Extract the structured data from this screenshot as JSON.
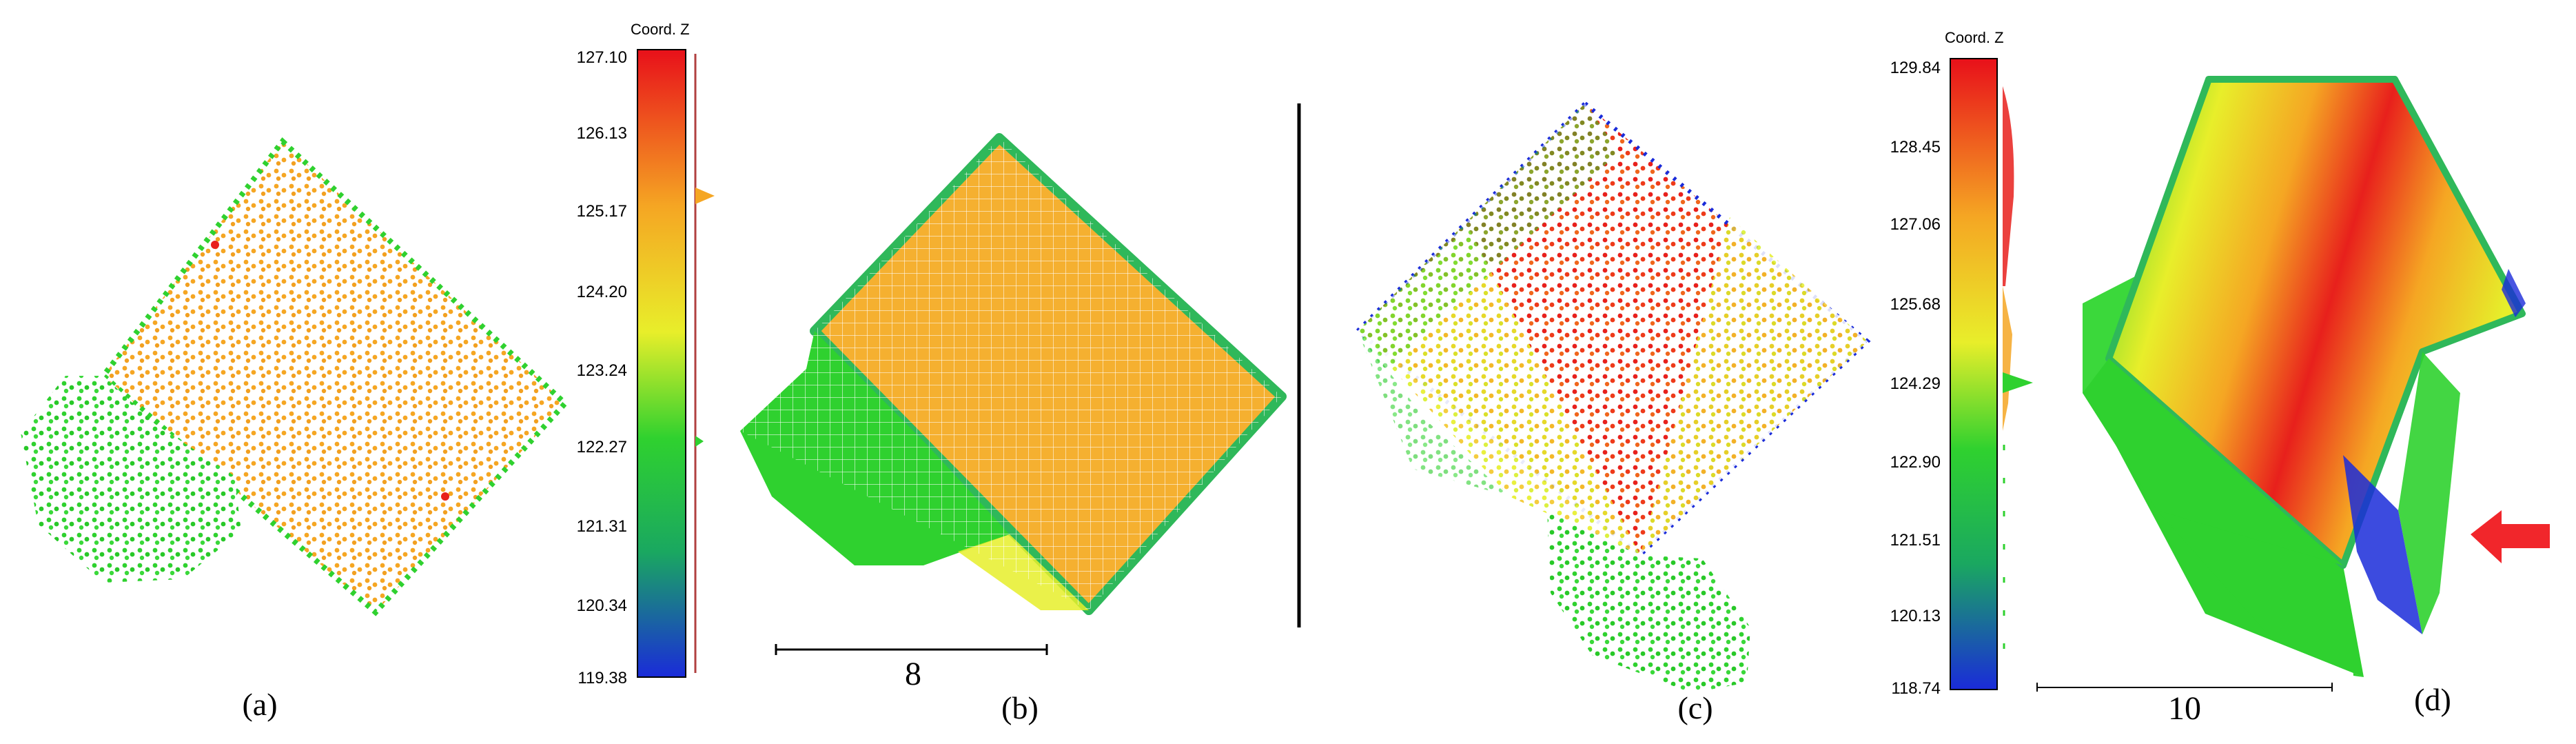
{
  "panels": {
    "a": {
      "label": "(a)"
    },
    "b": {
      "label": "(b)",
      "scale_text": "8"
    },
    "c": {
      "label": "(c)"
    },
    "d": {
      "label": "(d)",
      "scale_text": "10"
    }
  },
  "colorbar_left": {
    "title": "Coord. Z",
    "ticks": [
      "127.10",
      "126.13",
      "125.17",
      "124.20",
      "123.24",
      "122.27",
      "121.31",
      "120.34",
      "119.38"
    ]
  },
  "colorbar_right": {
    "title": "Coord. Z",
    "ticks": [
      "129.84",
      "128.45",
      "127.06",
      "125.68",
      "124.29",
      "122.90",
      "121.51",
      "120.13",
      "118.74"
    ]
  },
  "colors": {
    "orange": "#F5A623",
    "green": "#2FD12F",
    "red": "#E8201C",
    "yellow": "#E6EE2A",
    "blue": "#1A2BD9",
    "arrow": "#F1262B"
  }
}
